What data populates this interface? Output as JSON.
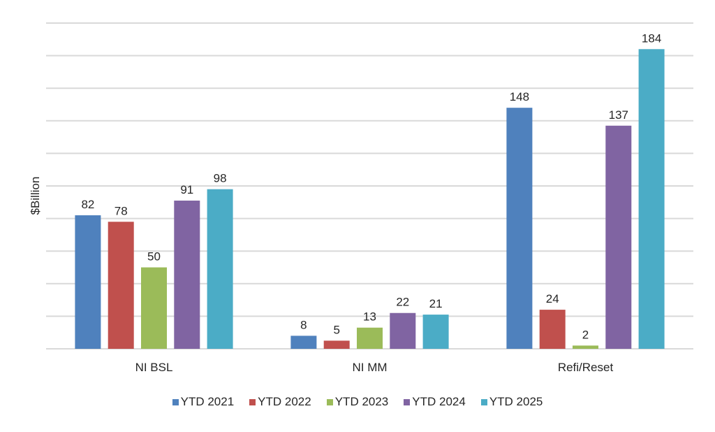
{
  "chart_data": {
    "type": "bar",
    "title": "",
    "xlabel": "",
    "ylabel": "$Billion",
    "ylim": [
      0,
      200
    ],
    "y_grid_step": 20,
    "y_tick_labels_shown": false,
    "grid": true,
    "legend_position": "bottom",
    "categories": [
      "NI BSL",
      "NI MM",
      "Refi/Reset"
    ],
    "series": [
      {
        "name": "YTD 2021",
        "color": "#4F81BD",
        "values": [
          82,
          8,
          148
        ]
      },
      {
        "name": "YTD 2022",
        "color": "#C0504D",
        "values": [
          78,
          5,
          24
        ]
      },
      {
        "name": "YTD 2023",
        "color": "#9BBB59",
        "values": [
          50,
          13,
          2
        ]
      },
      {
        "name": "YTD 2024",
        "color": "#8064A2",
        "values": [
          91,
          22,
          137
        ]
      },
      {
        "name": "YTD 2025",
        "color": "#4BACC6",
        "values": [
          98,
          21,
          184
        ]
      }
    ]
  }
}
